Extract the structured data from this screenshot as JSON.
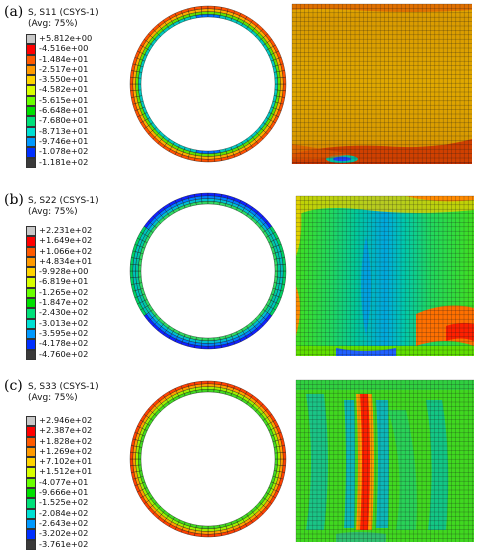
{
  "panels": [
    {
      "label": "(a)",
      "title": "S, S11 (CSYS-1)",
      "avg": "(Avg: 75%)",
      "legend": [
        "+5.812e+00",
        "-4.516e+00",
        "-1.484e+01",
        "-2.517e+01",
        "-3.550e+01",
        "-4.582e+01",
        "-5.615e+01",
        "-6.648e+01",
        "-7.680e+01",
        "-8.713e+01",
        "-9.746e+01",
        "-1.078e+02",
        "-1.181e+02"
      ]
    },
    {
      "label": "(b)",
      "title": "S, S22 (CSYS-1)",
      "avg": "(Avg: 75%)",
      "legend": [
        "+2.231e+02",
        "+1.649e+02",
        "+1.066e+02",
        "+4.834e+01",
        "-9.928e+00",
        "-6.819e+01",
        "-1.265e+02",
        "-1.847e+02",
        "-2.430e+02",
        "-3.013e+02",
        "-3.595e+02",
        "-4.178e+02",
        "-4.760e+02"
      ]
    },
    {
      "label": "(c)",
      "title": "S, S33 (CSYS-1)",
      "avg": "(Avg: 75%)",
      "legend": [
        "+2.946e+02",
        "+2.387e+02",
        "+1.828e+02",
        "+1.269e+02",
        "+7.102e+01",
        "+1.512e+01",
        "-4.077e+01",
        "-9.666e+01",
        "-1.525e+02",
        "-2.084e+02",
        "-2.643e+02",
        "-3.202e+02",
        "-3.761e+02"
      ]
    }
  ],
  "colors": {
    "swatches": [
      "#c8c8c8",
      "#ff0000",
      "#ff5a00",
      "#ff9a00",
      "#ffd400",
      "#d8ff00",
      "#6aff00",
      "#00e000",
      "#00e07a",
      "#00e0d4",
      "#0099ff",
      "#0030ff",
      "#3a3a3a"
    ],
    "mesh_line": "#1a1a1a"
  }
}
